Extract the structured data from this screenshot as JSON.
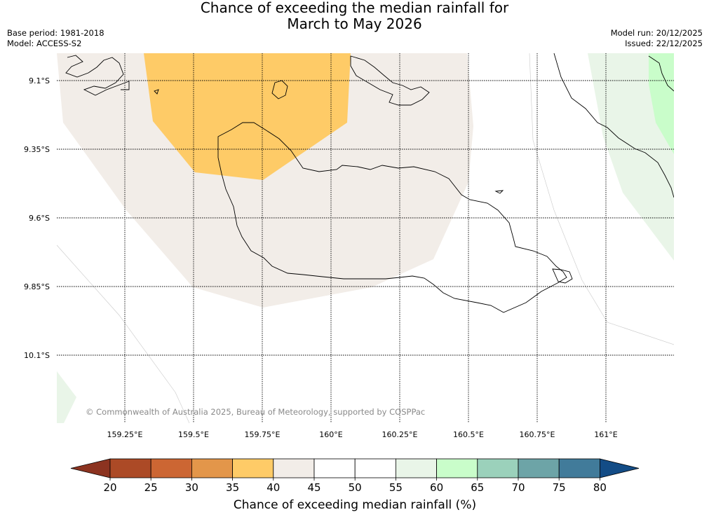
{
  "title": {
    "line1": "Chance of exceeding the median rainfall for",
    "line2": "March to May 2026"
  },
  "meta": {
    "base_period": "Base period: 1981-2018",
    "model": "Model: ACCESS-S2",
    "model_run": "Model run: 20/12/2025",
    "issued": "Issued: 22/12/2025"
  },
  "map": {
    "lat_labels": [
      "9.1°S",
      "9.35°S",
      "9.6°S",
      "9.85°S",
      "10.1°S"
    ],
    "lon_labels": [
      "159.25°E",
      "159.5°E",
      "159.75°E",
      "160°E",
      "160.25°E",
      "160.5°E",
      "160.75°E",
      "161°E"
    ],
    "copyright": "© Commonwealth of Australia 2025, Bureau of Meteorology, supported by COSPPac",
    "region_categories": {
      "orange_region": "35-40",
      "beige_region": "40-45",
      "light_green_region": "55-60",
      "green_region": "60-65"
    }
  },
  "colorbar": {
    "ticks": [
      "20",
      "25",
      "30",
      "35",
      "40",
      "45",
      "50",
      "55",
      "60",
      "65",
      "70",
      "75",
      "80"
    ],
    "colors": [
      "#ac4a26",
      "#cc6633",
      "#e3964a",
      "#fecb67",
      "#f2ede8",
      "#ffffff",
      "#ffffff",
      "#e9f5e8",
      "#c9fdca",
      "#9bd1bb",
      "#6da4a7",
      "#417b9a"
    ],
    "under_color": "#8c3320",
    "over_color": "#134c86",
    "label": "Chance of exceeding median rainfall (%)"
  }
}
